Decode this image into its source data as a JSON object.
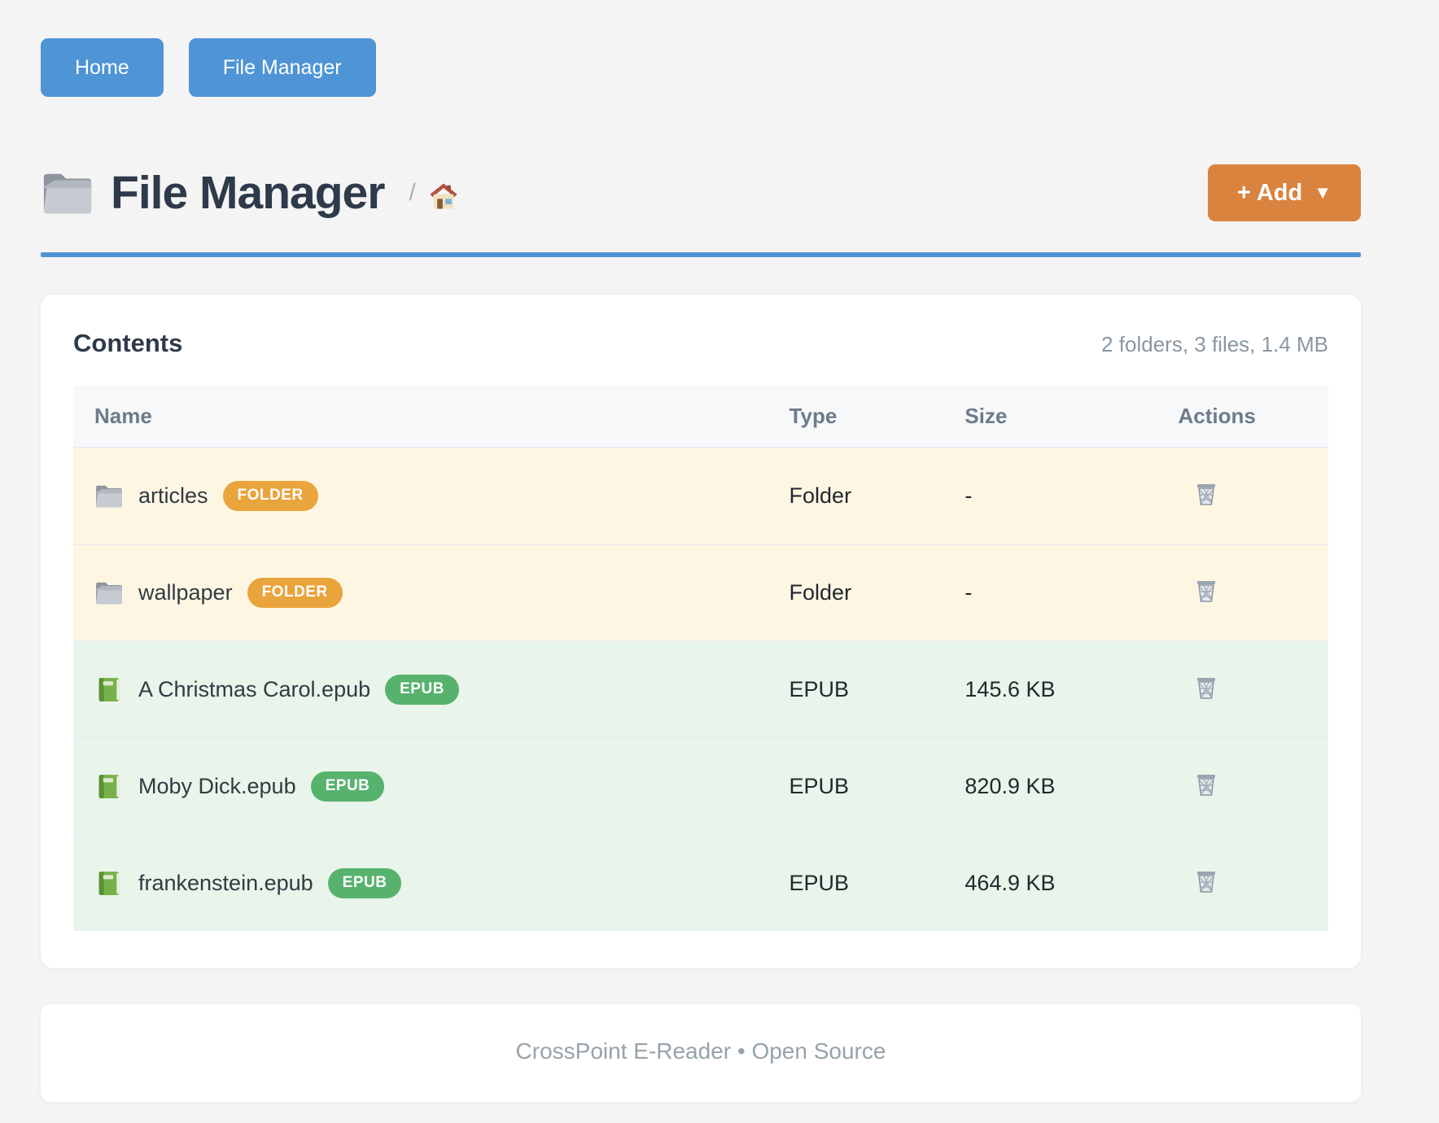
{
  "nav": {
    "buttons": [
      {
        "label": "Home"
      },
      {
        "label": "File Manager"
      }
    ]
  },
  "header": {
    "title": "File Manager",
    "breadcrumb_separator": "/",
    "add_button": {
      "label": "+ Add",
      "caret": "▼"
    }
  },
  "contents": {
    "heading": "Contents",
    "summary": "2 folders, 3 files, 1.4 MB",
    "columns": [
      "Name",
      "Type",
      "Size",
      "Actions"
    ],
    "rows": [
      {
        "name": "articles",
        "icon": "folder-icon",
        "badge": "FOLDER",
        "kind": "folder",
        "type": "Folder",
        "size": "-"
      },
      {
        "name": "wallpaper",
        "icon": "folder-icon",
        "badge": "FOLDER",
        "kind": "folder",
        "type": "Folder",
        "size": "-"
      },
      {
        "name": "A Christmas Carol.epub",
        "icon": "book-icon",
        "badge": "EPUB",
        "kind": "epub",
        "type": "EPUB",
        "size": "145.6 KB"
      },
      {
        "name": "Moby Dick.epub",
        "icon": "book-icon",
        "badge": "EPUB",
        "kind": "epub",
        "type": "EPUB",
        "size": "820.9 KB"
      },
      {
        "name": "frankenstein.epub",
        "icon": "book-icon",
        "badge": "EPUB",
        "kind": "epub",
        "type": "EPUB",
        "size": "464.9 KB"
      }
    ]
  },
  "footer": {
    "text": "CrossPoint E-Reader • Open Source"
  },
  "colors": {
    "accent_blue": "#4f94d4",
    "add_orange": "#d9833f",
    "folder_badge": "#e9a43c",
    "epub_badge": "#57b26d",
    "folder_row_bg": "#fdf6e3",
    "epub_row_bg": "#e9f4ea",
    "page_bg": "#f4f4f5"
  }
}
